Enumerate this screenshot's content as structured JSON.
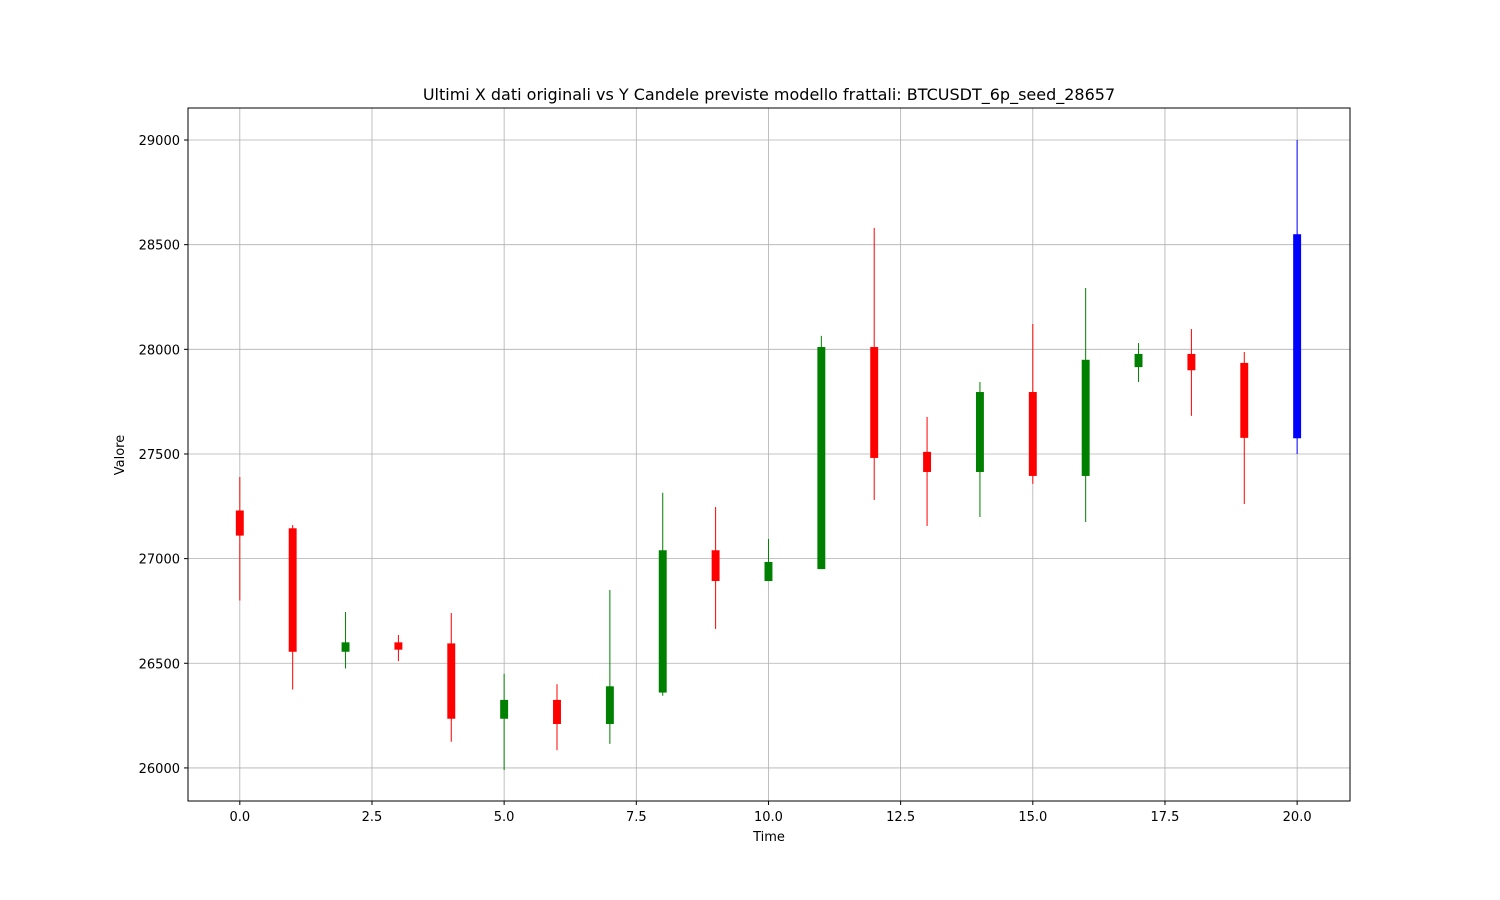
{
  "chart_data": {
    "type": "candlestick",
    "title": "Ultimi X dati originali vs Y Candele previste modello frattali: BTCUSDT_6p_seed_28657",
    "x_label": "Time",
    "y_label": "Valore",
    "x": [
      0,
      1,
      2,
      3,
      4,
      5,
      6,
      7,
      8,
      9,
      10,
      11,
      12,
      13,
      14,
      15,
      16,
      17,
      18,
      19,
      20
    ],
    "open": [
      27230,
      27145,
      26555,
      26600,
      26595,
      26235,
      26325,
      26210,
      26360,
      27040,
      26893,
      26950,
      28011,
      27510,
      27414,
      27796,
      27395,
      27915,
      27978,
      27935,
      27575
    ],
    "high": [
      27390,
      27160,
      26745,
      26635,
      26740,
      26450,
      26400,
      26850,
      27315,
      27247,
      27094,
      28064,
      28580,
      27677,
      27844,
      28121,
      28293,
      28030,
      28097,
      27987,
      29000
    ],
    "low": [
      26800,
      26375,
      26475,
      26510,
      26125,
      25990,
      26085,
      26115,
      26345,
      26664,
      26893,
      26950,
      27280,
      27156,
      27199,
      27357,
      27175,
      27844,
      27682,
      27261,
      27500
    ],
    "close": [
      27110,
      26555,
      26600,
      26565,
      26235,
      26325,
      26210,
      26390,
      27040,
      26893,
      26984,
      28011,
      27481,
      27414,
      27796,
      27395,
      27950,
      27978,
      27900,
      27577,
      28550
    ],
    "colors": [
      "red",
      "red",
      "green",
      "red",
      "red",
      "green",
      "red",
      "green",
      "green",
      "red",
      "green",
      "green",
      "red",
      "red",
      "green",
      "red",
      "green",
      "green",
      "red",
      "red",
      "blue"
    ],
    "xlim": [
      -0.98,
      21.0
    ],
    "ylim": [
      25842,
      29153
    ],
    "xticks": [
      {
        "value": 0,
        "label": "0.0"
      },
      {
        "value": 2.5,
        "label": "2.5"
      },
      {
        "value": 5,
        "label": "5.0"
      },
      {
        "value": 7.5,
        "label": "7.5"
      },
      {
        "value": 10,
        "label": "10.0"
      },
      {
        "value": 12.5,
        "label": "12.5"
      },
      {
        "value": 15,
        "label": "15.0"
      },
      {
        "value": 17.5,
        "label": "17.5"
      },
      {
        "value": 20,
        "label": "20.0"
      }
    ],
    "yticks": [
      26000,
      26500,
      27000,
      27500,
      28000,
      28500,
      29000
    ],
    "grid": true
  }
}
